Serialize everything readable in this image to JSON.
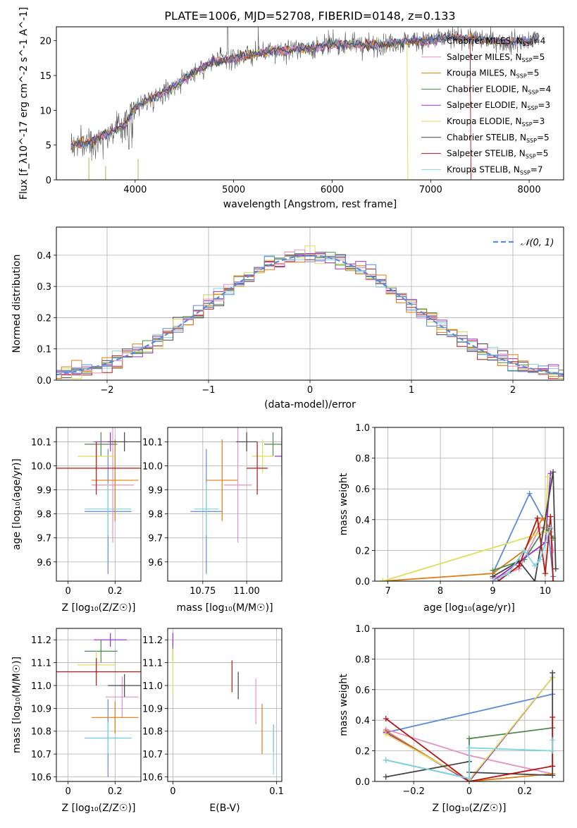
{
  "title": "PLATE=1006, MJD=52708, FIBERID=0148, z=0.133",
  "colors": [
    "#5b8bd8",
    "#e88fc3",
    "#e07b10",
    "#4e8a4e",
    "#9b30c8",
    "#dede57",
    "#444444",
    "#b81414",
    "#7dd6df"
  ],
  "legend_labels": [
    "Chabrier MILES, N_SSP=4",
    "Salpeter MILES, N_SSP=5",
    "Kroupa MILES, N_SSP=5",
    "Chabrier ELODIE, N_SSP=4",
    "Salpeter ELODIE, N_SSP=3",
    "Kroupa ELODIE, N_SSP=3",
    "Chabrier STELIB, N_SSP=5",
    "Salpeter STELIB, N_SSP=5",
    "Kroupa STELIB, N_SSP=7"
  ],
  "chart_data": [
    {
      "type": "line",
      "title": "PLATE=1006, MJD=52708, FIBERID=0148, z=0.133",
      "xlabel": "wavelength [Angstrom, rest frame]",
      "ylabel": "Flux [f_λ10^-17 erg cm^-2 s^-1 A^-1]",
      "xlim": [
        3200,
        8350
      ],
      "ylim": [
        0,
        22
      ],
      "xticks": [
        4000,
        5000,
        6000,
        7000,
        8000
      ],
      "yticks": [
        0,
        5,
        10,
        15,
        20
      ],
      "grid": false,
      "legend": "top-right",
      "continuum_x": [
        3350,
        3500,
        3700,
        3900,
        4000,
        4200,
        4400,
        4600,
        4800,
        5000,
        5200,
        5400,
        5600,
        5800,
        6000,
        6200,
        6400,
        6600,
        6800,
        7000,
        7200,
        7400,
        7600,
        7800,
        8000,
        8100
      ],
      "continuum_y": [
        5,
        5.3,
        6.5,
        8,
        10.5,
        12,
        13.5,
        15.5,
        17,
        17.5,
        18,
        18.5,
        18.8,
        19,
        19.5,
        19.5,
        19.3,
        19.7,
        20,
        20,
        20.5,
        20.3,
        20,
        19.8,
        20,
        20.5
      ]
    },
    {
      "type": "line",
      "xlabel": "(data-model)/error",
      "ylabel": "Normed distribution",
      "xlim": [
        -2.5,
        2.5
      ],
      "ylim": [
        0,
        0.49
      ],
      "xticks": [
        -2,
        -1,
        0,
        1,
        2
      ],
      "yticks": [
        0.0,
        0.1,
        0.2,
        0.3,
        0.4
      ],
      "grid": true,
      "legend": "top-right",
      "legend_label": "N(0,1)",
      "bin_width": 0.1
    },
    {
      "type": "scatter",
      "xlabel": "Z [log10(Z/Z☉)]",
      "ylabel": "age  [log10(age/yr)]",
      "xlim": [
        -0.05,
        0.31
      ],
      "ylim": [
        9.52,
        10.16
      ],
      "xticks": [
        0.0,
        0.2
      ],
      "yticks": [
        9.6,
        9.7,
        9.8,
        9.9,
        10.0,
        10.1
      ],
      "points": [
        {
          "x": 0.17,
          "y": 9.81,
          "xerr": 0.1,
          "yerr": 0.26
        },
        {
          "x": 0.19,
          "y": 9.92,
          "xerr": 0.09,
          "yerr": 0.24
        },
        {
          "x": 0.2,
          "y": 9.94,
          "xerr": 0.1,
          "yerr": 0.17
        },
        {
          "x": 0.14,
          "y": 10.09,
          "xerr": 0.07,
          "yerr": 0.05
        },
        {
          "x": 0.18,
          "y": 10.1,
          "xerr": 0.07,
          "yerr": 0.04
        },
        {
          "x": 0.12,
          "y": 10.04,
          "xerr": 0.08,
          "yerr": 0.06
        },
        {
          "x": 0.24,
          "y": 10.1,
          "xerr": 0.07,
          "yerr": 0.04
        },
        {
          "x": 0.12,
          "y": 9.99,
          "xerr": 0.19,
          "yerr": 0.11
        },
        {
          "x": 0.17,
          "y": 9.82,
          "xerr": 0.1,
          "yerr": 0.11
        }
      ]
    },
    {
      "type": "scatter",
      "xlabel": "mass [log10(M/M☉)]",
      "ylabel": "",
      "xlim": [
        10.55,
        11.2
      ],
      "ylim": [
        9.52,
        10.16
      ],
      "xticks": [
        10.75,
        11.0
      ],
      "tick_labels": [
        "10.75",
        "11.00"
      ],
      "yticks": [
        9.6,
        9.7,
        9.8,
        9.9,
        10.0,
        10.1
      ],
      "points": [
        {
          "x": 10.77,
          "y": 9.81,
          "xerr": 0.09,
          "yerr": 0.26
        },
        {
          "x": 10.95,
          "y": 9.92,
          "xerr": 0.08,
          "yerr": 0.24
        },
        {
          "x": 10.86,
          "y": 9.94,
          "xerr": 0.09,
          "yerr": 0.17
        },
        {
          "x": 11.15,
          "y": 10.09,
          "xerr": 0.05,
          "yerr": 0.05
        },
        {
          "x": 11.2,
          "y": 10.04,
          "xerr": 0.04,
          "yerr": 0.08
        },
        {
          "x": 11.09,
          "y": 10.04,
          "xerr": 0.06,
          "yerr": 0.07
        },
        {
          "x": 11.0,
          "y": 10.1,
          "xerr": 0.06,
          "yerr": 0.04
        },
        {
          "x": 11.06,
          "y": 9.99,
          "xerr": 0.06,
          "yerr": 0.11
        },
        {
          "x": 10.77,
          "y": 9.82,
          "xerr": 0.07,
          "yerr": 0.11
        }
      ]
    },
    {
      "type": "line",
      "xlabel": "age  [log10(age/yr)]",
      "ylabel": "mass weight",
      "xlim": [
        6.75,
        10.35
      ],
      "ylim": [
        0,
        1.0
      ],
      "xticks": [
        7,
        8,
        9,
        10
      ],
      "yticks": [
        0.0,
        0.2,
        0.4,
        0.6,
        0.8,
        1.0
      ],
      "grid": true,
      "series": [
        {
          "x": [
            9.0,
            9.7,
            10.05,
            10.15
          ],
          "y": [
            0.05,
            0.57,
            0.35,
            0.03
          ]
        },
        {
          "x": [
            9.0,
            9.5,
            9.9,
            10.1,
            10.15
          ],
          "y": [
            0.02,
            0.08,
            0.35,
            0.32,
            0.2
          ]
        },
        {
          "x": [
            6.9,
            9.0,
            9.6,
            9.95,
            10.1
          ],
          "y": [
            0.0,
            0.05,
            0.2,
            0.41,
            0.34
          ]
        },
        {
          "x": [
            9.0,
            9.6,
            10.0,
            10.15
          ],
          "y": [
            0.07,
            0.14,
            0.35,
            0.28
          ]
        },
        {
          "x": [
            9.0,
            10.0,
            10.1
          ],
          "y": [
            0.0,
            0.25,
            0.7
          ]
        },
        {
          "x": [
            6.9,
            10.0,
            10.05
          ],
          "y": [
            0.0,
            0.32,
            0.68
          ]
        },
        {
          "x": [
            9.0,
            9.5,
            9.8,
            10.15,
            10.2
          ],
          "y": [
            0.03,
            0.13,
            0.0,
            0.71,
            0.08
          ]
        },
        {
          "x": [
            9.1,
            9.5,
            9.85,
            10.0,
            10.1,
            10.15
          ],
          "y": [
            0.0,
            0.1,
            0.41,
            0.05,
            0.42,
            0.0
          ]
        },
        {
          "x": [
            9.0,
            9.3,
            9.6,
            9.8,
            9.9,
            10.1
          ],
          "y": [
            0.0,
            0.05,
            0.2,
            0.1,
            0.14,
            0.35
          ]
        }
      ]
    },
    {
      "type": "scatter",
      "xlabel": "Z [log10(Z/Z☉)]",
      "ylabel": "mass [log10(M/M☉)]",
      "xlim": [
        -0.05,
        0.31
      ],
      "ylim": [
        10.58,
        11.25
      ],
      "xticks": [
        0.0,
        0.2
      ],
      "yticks": [
        10.6,
        10.7,
        10.8,
        10.9,
        11.0,
        11.1,
        11.2
      ],
      "points": [
        {
          "x": 0.17,
          "y": 10.77,
          "xerr": 0.1,
          "yerr": 0.17
        },
        {
          "x": 0.23,
          "y": 10.95,
          "xerr": 0.07,
          "yerr": 0.09
        },
        {
          "x": 0.2,
          "y": 10.86,
          "xerr": 0.1,
          "yerr": 0.07
        },
        {
          "x": 0.14,
          "y": 11.15,
          "xerr": 0.07,
          "yerr": 0.05
        },
        {
          "x": 0.18,
          "y": 11.2,
          "xerr": 0.07,
          "yerr": 0.03
        },
        {
          "x": 0.12,
          "y": 11.09,
          "xerr": 0.08,
          "yerr": 0.06
        },
        {
          "x": 0.24,
          "y": 11.0,
          "xerr": 0.07,
          "yerr": 0.05
        },
        {
          "x": 0.12,
          "y": 11.06,
          "xerr": 0.19,
          "yerr": 0.06
        },
        {
          "x": 0.17,
          "y": 10.77,
          "xerr": 0.1,
          "yerr": 0.07
        }
      ]
    },
    {
      "type": "scatter",
      "xlabel": "E(B-V)",
      "ylabel": "",
      "xlim": [
        -0.005,
        0.105
      ],
      "ylim": [
        10.58,
        11.25
      ],
      "xticks": [
        0.0,
        0.1
      ],
      "yticks": [
        10.6,
        10.7,
        10.8,
        10.9,
        11.0,
        11.1,
        11.2
      ],
      "points": [
        {
          "x": 0.097,
          "y": 10.77,
          "xerr": 0,
          "yerr": 0.06
        },
        {
          "x": 0.08,
          "y": 10.93,
          "xerr": 0,
          "yerr": 0.1
        },
        {
          "x": 0.086,
          "y": 10.81,
          "xerr": 0,
          "yerr": 0.11
        },
        {
          "x": 0.0,
          "y": 11.15,
          "xerr": 0,
          "yerr": 0.04
        },
        {
          "x": 0.0,
          "y": 11.2,
          "xerr": 0,
          "yerr": 0.03
        },
        {
          "x": 0.0,
          "y": 11.06,
          "xerr": 0,
          "yerr": 0.1
        },
        {
          "x": 0.063,
          "y": 11.0,
          "xerr": 0,
          "yerr": 0.06
        },
        {
          "x": 0.057,
          "y": 11.04,
          "xerr": 0,
          "yerr": 0.07
        },
        {
          "x": 0.097,
          "y": 10.72,
          "xerr": 0,
          "yerr": 0.11
        }
      ]
    },
    {
      "type": "line",
      "xlabel": "Z [log10(Z/Z☉)]",
      "ylabel": "mass weight",
      "xlim": [
        -0.34,
        0.34
      ],
      "ylim": [
        0,
        1.0
      ],
      "xticks": [
        -0.2,
        0.0,
        0.2
      ],
      "yticks": [
        0.0,
        0.2,
        0.4,
        0.6,
        0.8,
        1.0
      ],
      "grid": true,
      "series": [
        {
          "x": [
            -0.3,
            0.3
          ],
          "y": [
            0.32,
            0.57
          ]
        },
        {
          "x": [
            -0.3,
            0.0,
            0.3
          ],
          "y": [
            0.34,
            0.17,
            0.05
          ]
        },
        {
          "x": [
            -0.3,
            0.0,
            0.3
          ],
          "y": [
            0.33,
            0.0,
            0.05
          ]
        },
        {
          "x": [
            -0.3,
            0.0,
            0.0,
            0.3
          ],
          "y": [
            0.14,
            0.02,
            0.28,
            0.35
          ]
        },
        {
          "x": [
            -0.3,
            0.0,
            0.3
          ],
          "y": [
            0.32,
            0.0,
            0.68
          ]
        },
        {
          "x": [
            -0.3,
            0.0,
            0.3
          ],
          "y": [
            0.31,
            0.01,
            0.68
          ]
        },
        {
          "x": [
            -0.3,
            0.0,
            0.0,
            0.3,
            0.3
          ],
          "y": [
            0.03,
            0.13,
            0.06,
            0.04,
            0.71
          ]
        },
        {
          "x": [
            -0.3,
            0.0,
            0.3,
            0.3
          ],
          "y": [
            0.41,
            0.0,
            0.1,
            0.42
          ]
        },
        {
          "x": [
            -0.3,
            0.0,
            0.0,
            0.3,
            0.3
          ],
          "y": [
            0.14,
            0.02,
            0.22,
            0.2,
            0.27
          ]
        }
      ]
    }
  ]
}
